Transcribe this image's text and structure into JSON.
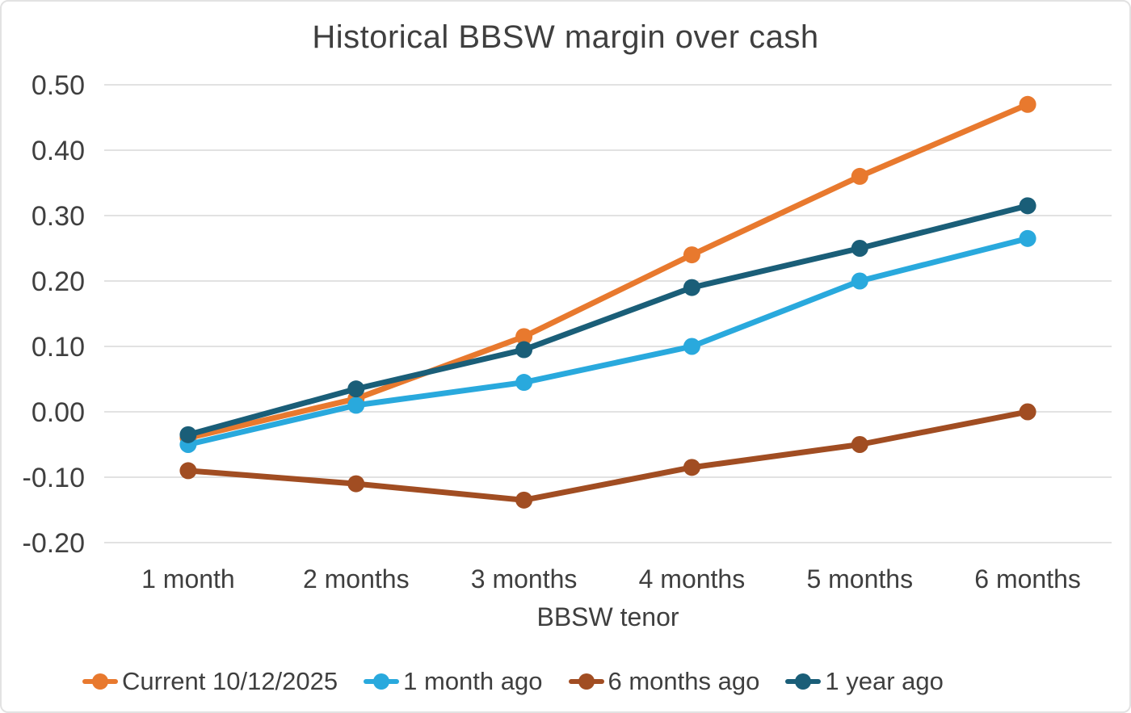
{
  "page": {
    "background": "#ffffff",
    "border_color": "#e2e2e2",
    "text_color": "#3f3f3f",
    "gridline_color": "#d9d9d9"
  },
  "chart_data": {
    "type": "line",
    "title": "Historical BBSW margin over cash",
    "xlabel": "BBSW tenor",
    "ylabel": "",
    "categories": [
      "1 month",
      "2 months",
      "3 months",
      "4 months",
      "5 months",
      "6 months"
    ],
    "series": [
      {
        "name": "Current 10/12/2025",
        "color": "#E8792E",
        "values": [
          -0.04,
          0.02,
          0.115,
          0.24,
          0.36,
          0.47
        ]
      },
      {
        "name": "1 month ago",
        "color": "#29A9DD",
        "values": [
          -0.05,
          0.01,
          0.045,
          0.1,
          0.2,
          0.265
        ]
      },
      {
        "name": "6 months ago",
        "color": "#A14D22",
        "values": [
          -0.09,
          -0.11,
          -0.135,
          -0.085,
          -0.05,
          0.0
        ]
      },
      {
        "name": "1 year ago",
        "color": "#1A5E78",
        "values": [
          -0.035,
          0.035,
          0.095,
          0.19,
          0.25,
          0.315
        ]
      }
    ],
    "ylim": [
      -0.2,
      0.5
    ],
    "ytick_values": [
      0.5,
      0.4,
      0.3,
      0.2,
      0.1,
      0.0,
      -0.1,
      -0.2
    ],
    "ytick_labels": [
      "0.50",
      "0.40",
      "0.30",
      "0.20",
      "0.10",
      "0.00",
      "-0.10",
      "-0.20"
    ],
    "grid": true,
    "legend_position": "bottom",
    "marker_style": "circle",
    "line_width": 7,
    "marker_radius": 10.5
  }
}
